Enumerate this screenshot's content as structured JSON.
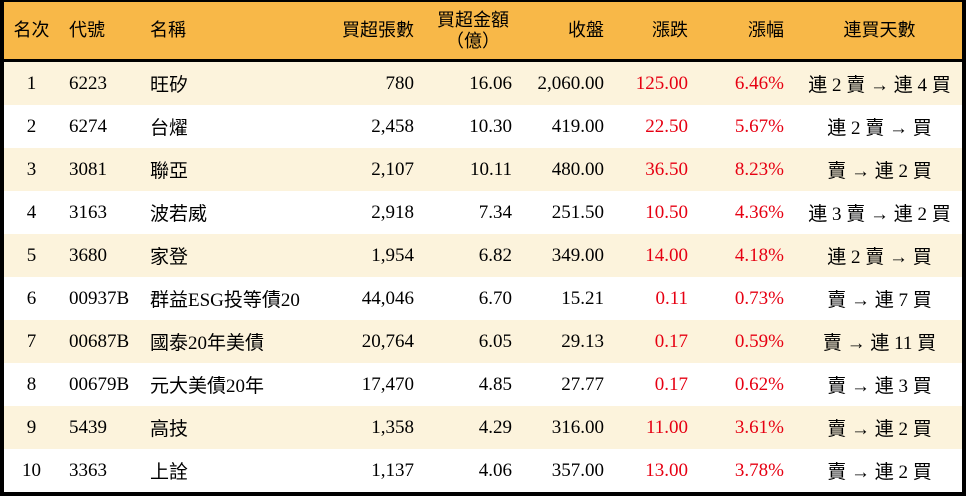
{
  "colors": {
    "header_bg": "#f8b848",
    "row_alt_bg": "#fcf3dc",
    "row_bg": "#ffffff",
    "up_text": "#e60012",
    "border": "#000000",
    "text": "#000000"
  },
  "chart_data": {
    "type": "table",
    "columns": [
      {
        "key": "rank",
        "label": "名次"
      },
      {
        "key": "code",
        "label": "代號"
      },
      {
        "key": "name",
        "label": "名稱"
      },
      {
        "key": "volume",
        "label": "買超張數"
      },
      {
        "key": "amount",
        "label": "買超金額",
        "sub": "（億）"
      },
      {
        "key": "close",
        "label": "收盤"
      },
      {
        "key": "change",
        "label": "漲跌",
        "up": true
      },
      {
        "key": "change_pct",
        "label": "漲幅",
        "up": true
      },
      {
        "key": "streak",
        "label": "連買天數"
      }
    ],
    "rows": [
      {
        "rank": "1",
        "code": "6223",
        "name": "旺矽",
        "volume": "780",
        "amount": "16.06",
        "close": "2,060.00",
        "change": "125.00",
        "change_pct": "6.46%",
        "streak": "連 2 賣 → 連 4 買"
      },
      {
        "rank": "2",
        "code": "6274",
        "name": "台燿",
        "volume": "2,458",
        "amount": "10.30",
        "close": "419.00",
        "change": "22.50",
        "change_pct": "5.67%",
        "streak": "連 2 賣 → 買"
      },
      {
        "rank": "3",
        "code": "3081",
        "name": "聯亞",
        "volume": "2,107",
        "amount": "10.11",
        "close": "480.00",
        "change": "36.50",
        "change_pct": "8.23%",
        "streak": "賣 → 連 2 買"
      },
      {
        "rank": "4",
        "code": "3163",
        "name": "波若威",
        "volume": "2,918",
        "amount": "7.34",
        "close": "251.50",
        "change": "10.50",
        "change_pct": "4.36%",
        "streak": "連 3 賣 → 連 2 買"
      },
      {
        "rank": "5",
        "code": "3680",
        "name": "家登",
        "volume": "1,954",
        "amount": "6.82",
        "close": "349.00",
        "change": "14.00",
        "change_pct": "4.18%",
        "streak": "連 2 賣 → 買"
      },
      {
        "rank": "6",
        "code": "00937B",
        "name": "群益ESG投等債20",
        "volume": "44,046",
        "amount": "6.70",
        "close": "15.21",
        "change": "0.11",
        "change_pct": "0.73%",
        "streak": "賣 → 連 7 買"
      },
      {
        "rank": "7",
        "code": "00687B",
        "name": "國泰20年美債",
        "volume": "20,764",
        "amount": "6.05",
        "close": "29.13",
        "change": "0.17",
        "change_pct": "0.59%",
        "streak": "賣 → 連 11 買"
      },
      {
        "rank": "8",
        "code": "00679B",
        "name": "元大美債20年",
        "volume": "17,470",
        "amount": "4.85",
        "close": "27.77",
        "change": "0.17",
        "change_pct": "0.62%",
        "streak": "賣 → 連 3 買"
      },
      {
        "rank": "9",
        "code": "5439",
        "name": "高技",
        "volume": "1,358",
        "amount": "4.29",
        "close": "316.00",
        "change": "11.00",
        "change_pct": "3.61%",
        "streak": "賣 → 連 2 買"
      },
      {
        "rank": "10",
        "code": "3363",
        "name": "上詮",
        "volume": "1,137",
        "amount": "4.06",
        "close": "357.00",
        "change": "13.00",
        "change_pct": "3.78%",
        "streak": "賣 → 連 2 買"
      }
    ]
  }
}
